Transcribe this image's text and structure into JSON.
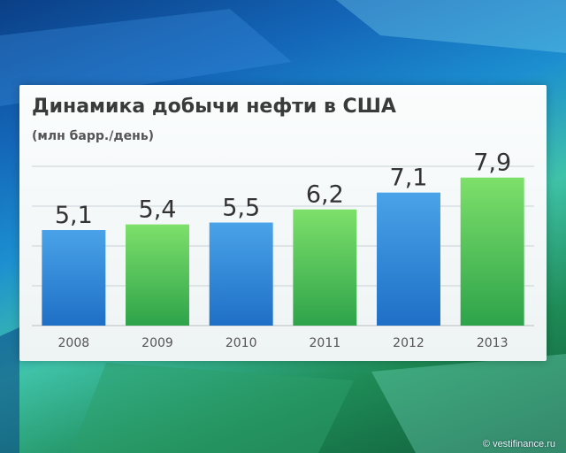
{
  "chart_data": {
    "type": "bar",
    "title": "Динамика добычи нефти в США",
    "subtitle": "(млн барр./день)",
    "categories": [
      "2008",
      "2009",
      "2010",
      "2011",
      "2012",
      "2013"
    ],
    "values": [
      5.1,
      5.4,
      5.5,
      6.2,
      7.1,
      7.9
    ],
    "value_labels": [
      "5,1",
      "5,4",
      "5,5",
      "6,2",
      "7,1",
      "7,9"
    ],
    "bar_colors": [
      "blue",
      "green",
      "blue",
      "green",
      "blue",
      "green"
    ],
    "ylim": [
      0,
      8.5
    ],
    "grid": true,
    "legend": "none"
  },
  "colors": {
    "blue_top": "#4aa3e8",
    "blue_bottom": "#1e6fc6",
    "green_top": "#7de06a",
    "green_bottom": "#2ea34a",
    "grid": "#c9d2d6",
    "label": "#333333",
    "tick": "#555555"
  },
  "watermark": "© vestifinance.ru"
}
